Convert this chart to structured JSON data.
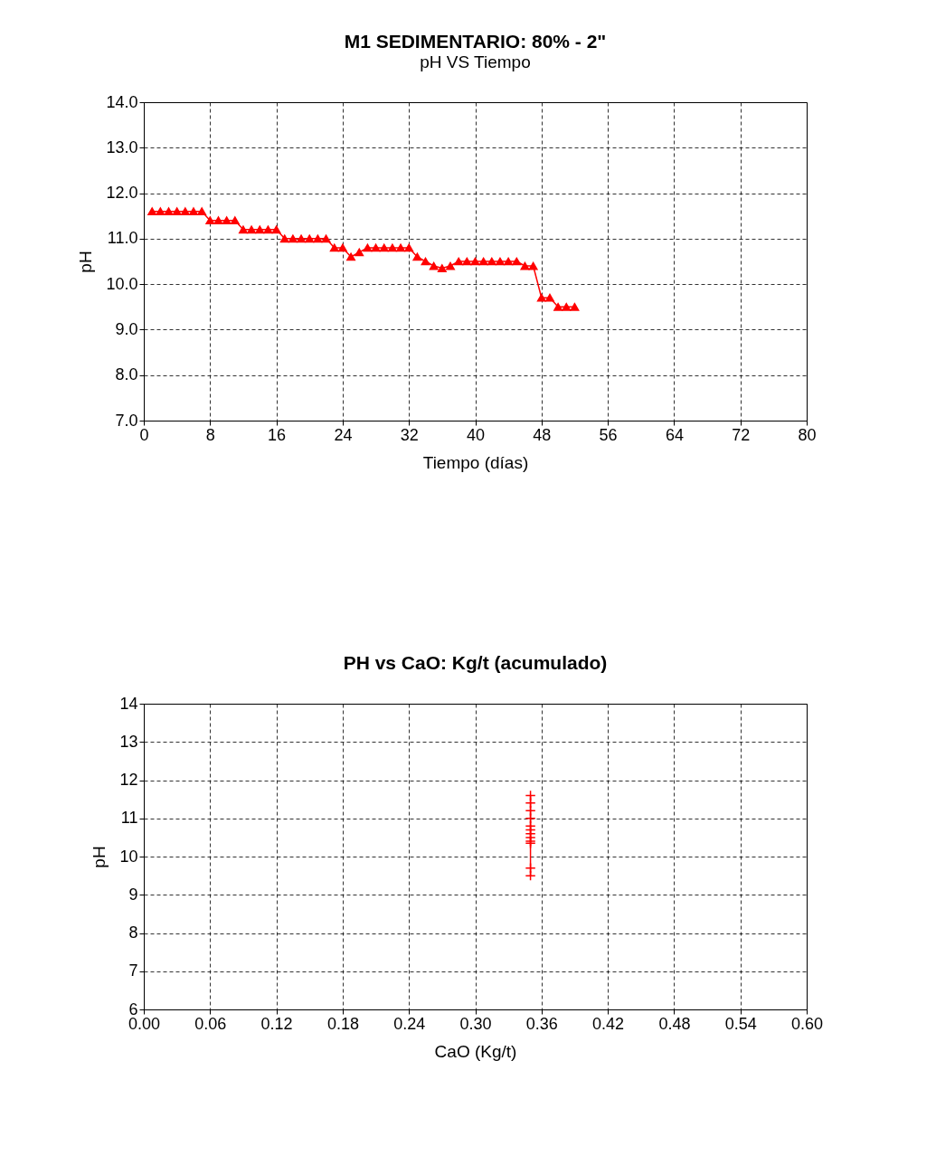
{
  "chart_data": [
    {
      "type": "line",
      "title": "M1 SEDIMENTARIO: 80% - 2\"",
      "subtitle": "pH VS Tiempo",
      "xlabel": "Tiempo (días)",
      "ylabel": "pH",
      "grid": true,
      "marker": "triangle",
      "line_style": "solid",
      "xlim": [
        0,
        80
      ],
      "xticks": [
        0,
        8,
        16,
        24,
        32,
        40,
        48,
        56,
        64,
        72,
        80
      ],
      "ylim": [
        7,
        14
      ],
      "yticks": [
        {
          "value": 7,
          "label": "7.0"
        },
        {
          "value": 8,
          "label": "8.0"
        },
        {
          "value": 9,
          "label": "9.0"
        },
        {
          "value": 10,
          "label": "10.0"
        },
        {
          "value": 11,
          "label": "11.0"
        },
        {
          "value": 12,
          "label": "12.0"
        },
        {
          "value": 13,
          "label": "13.0"
        },
        {
          "value": 14,
          "label": "14.0"
        }
      ],
      "x": [
        1,
        2,
        3,
        4,
        5,
        6,
        7,
        8,
        9,
        10,
        11,
        12,
        13,
        14,
        15,
        16,
        17,
        18,
        19,
        20,
        21,
        22,
        23,
        24,
        25,
        26,
        27,
        28,
        29,
        30,
        31,
        32,
        33,
        34,
        35,
        36,
        37,
        38,
        39,
        40,
        41,
        42,
        43,
        44,
        45,
        46,
        47,
        48,
        49,
        50,
        51,
        52
      ],
      "series": [
        {
          "color": "#ff0000",
          "values": [
            11.6,
            11.6,
            11.6,
            11.6,
            11.6,
            11.6,
            11.6,
            11.4,
            11.4,
            11.4,
            11.4,
            11.2,
            11.2,
            11.2,
            11.2,
            11.2,
            11.0,
            11.0,
            11.0,
            11.0,
            11.0,
            11.0,
            10.8,
            10.8,
            10.6,
            10.7,
            10.8,
            10.8,
            10.8,
            10.8,
            10.8,
            10.8,
            10.6,
            10.5,
            10.4,
            10.35,
            10.4,
            10.5,
            10.5,
            10.5,
            10.5,
            10.5,
            10.5,
            10.5,
            10.5,
            10.4,
            10.4,
            9.7,
            9.7,
            9.5,
            9.5,
            9.5
          ]
        }
      ]
    },
    {
      "type": "line",
      "title": "PH vs CaO: Kg/t (acumulado)",
      "xlabel": "CaO (Kg/t)",
      "ylabel": "pH",
      "grid": true,
      "marker": "cross",
      "line_style": "solid",
      "xlim": [
        0,
        0.6
      ],
      "xticks": [
        {
          "value": 0,
          "label": "0.00"
        },
        {
          "value": 0.06,
          "label": "0.06"
        },
        {
          "value": 0.12,
          "label": "0.12"
        },
        {
          "value": 0.18,
          "label": "0.18"
        },
        {
          "value": 0.24,
          "label": "0.24"
        },
        {
          "value": 0.3,
          "label": "0.30"
        },
        {
          "value": 0.36,
          "label": "0.36"
        },
        {
          "value": 0.42,
          "label": "0.42"
        },
        {
          "value": 0.48,
          "label": "0.48"
        },
        {
          "value": 0.54,
          "label": "0.54"
        },
        {
          "value": 0.6,
          "label": "0.60"
        }
      ],
      "ylim": [
        6,
        14
      ],
      "yticks": [
        6,
        7,
        8,
        9,
        10,
        11,
        12,
        13,
        14
      ],
      "x": [
        0.35,
        0.35,
        0.35,
        0.35,
        0.35,
        0.35,
        0.35,
        0.35,
        0.35,
        0.35,
        0.35,
        0.35
      ],
      "series": [
        {
          "color": "#ff0000",
          "values": [
            11.6,
            11.4,
            11.2,
            11.0,
            10.8,
            10.7,
            10.6,
            10.5,
            10.4,
            10.35,
            9.7,
            9.5
          ]
        }
      ]
    }
  ]
}
